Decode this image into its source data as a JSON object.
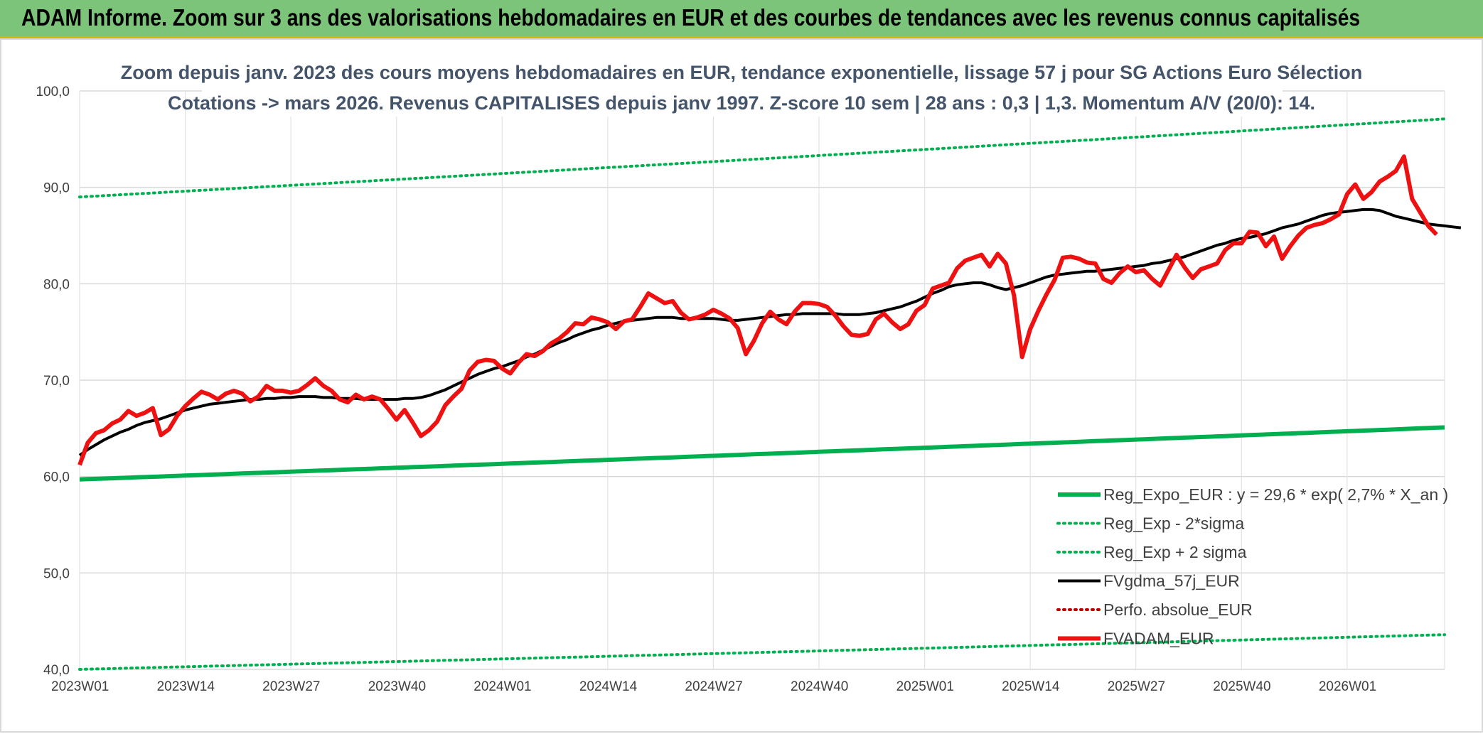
{
  "banner": {
    "title": "ADAM Informe. Zoom sur 3 ans des valorisations hebdomadaires en EUR et des courbes de tendances avec les revenus connus capitalisés"
  },
  "chart_data": {
    "type": "line",
    "title_line1": "Zoom depuis janv. 2023 des cours moyens hebdomadaires en EUR, tendance exponentielle, lissage 57 j pour SG Actions Euro Sélection",
    "title_line2": "Cotations -> mars 2026. Revenus CAPITALISES depuis janv 1997. Z-score 10 sem | 28 ans : 0,3 | 1,3. Momentum A/V (20/0): 14.",
    "ylim": [
      40,
      100
    ],
    "yticks": [
      "40,0",
      "50,0",
      "60,0",
      "70,0",
      "80,0",
      "90,0",
      "100,0"
    ],
    "xtick_labels": [
      "2023W01",
      "2023W14",
      "2023W27",
      "2023W40",
      "2024W01",
      "2024W14",
      "2024W27",
      "2024W40",
      "2025W01",
      "2025W14",
      "2025W27",
      "2025W40",
      "2026W01"
    ],
    "x_categories_count": 169,
    "grid": true,
    "legend_position": "bottom-right",
    "series": [
      {
        "name": "Reg_Expo_EUR : y = 29,6 * exp( 2,7% *  X_an )",
        "color": "#00b050",
        "style": "solid-thick",
        "values": [
          59.7,
          65.1
        ]
      },
      {
        "name": "Reg_Exp - 2*sigma",
        "color": "#00b050",
        "style": "dotted",
        "values": [
          40.0,
          43.6
        ]
      },
      {
        "name": "Reg_Exp + 2 sigma",
        "color": "#00b050",
        "style": "dotted",
        "values": [
          89.0,
          97.1
        ]
      },
      {
        "name": "FVgdma_57j_EUR",
        "color": "#000000",
        "style": "solid",
        "values": [
          62.2,
          62.8,
          63.3,
          63.8,
          64.2,
          64.6,
          64.9,
          65.3,
          65.6,
          65.8,
          66.0,
          66.3,
          66.6,
          66.9,
          67.1,
          67.3,
          67.5,
          67.6,
          67.7,
          67.8,
          67.9,
          68.0,
          68.0,
          68.1,
          68.1,
          68.2,
          68.2,
          68.3,
          68.3,
          68.3,
          68.2,
          68.2,
          68.1,
          68.1,
          68.1,
          68.0,
          68.0,
          68.0,
          68.0,
          68.0,
          68.1,
          68.1,
          68.2,
          68.4,
          68.7,
          69.0,
          69.4,
          69.8,
          70.2,
          70.6,
          70.9,
          71.2,
          71.4,
          71.7,
          72.0,
          72.4,
          72.7,
          73.1,
          73.5,
          73.9,
          74.2,
          74.6,
          74.9,
          75.2,
          75.4,
          75.7,
          75.9,
          76.1,
          76.2,
          76.3,
          76.4,
          76.5,
          76.5,
          76.5,
          76.4,
          76.4,
          76.4,
          76.4,
          76.4,
          76.3,
          76.2,
          76.2,
          76.3,
          76.4,
          76.5,
          76.6,
          76.7,
          76.8,
          76.8,
          76.9,
          76.9,
          76.9,
          76.9,
          76.9,
          76.8,
          76.8,
          76.8,
          76.9,
          77.0,
          77.2,
          77.4,
          77.6,
          77.9,
          78.2,
          78.6,
          79.0,
          79.3,
          79.7,
          79.9,
          80.0,
          80.1,
          80.1,
          79.9,
          79.6,
          79.4,
          79.6,
          79.8,
          80.1,
          80.4,
          80.7,
          80.9,
          81.0,
          81.1,
          81.2,
          81.3,
          81.3,
          81.4,
          81.5,
          81.6,
          81.7,
          81.8,
          81.9,
          82.1,
          82.2,
          82.4,
          82.6,
          82.8,
          83.1,
          83.4,
          83.7,
          84.0,
          84.2,
          84.5,
          84.7,
          84.8,
          85.0,
          85.2,
          85.5,
          85.8,
          86.0,
          86.2,
          86.5,
          86.8,
          87.1,
          87.3,
          87.4,
          87.5,
          87.6,
          87.7,
          87.7,
          87.6,
          87.3,
          87.0,
          86.8,
          86.6,
          86.4,
          86.2,
          86.1,
          86.0,
          85.9,
          85.8
        ]
      },
      {
        "name": "Perfo. absolue_EUR",
        "color": "#c00000",
        "style": "dotted",
        "values": []
      },
      {
        "name": "FVADAM_EUR",
        "color": "#ee1111",
        "style": "solid-thick",
        "values": [
          61.2,
          63.5,
          64.5,
          64.8,
          65.5,
          65.9,
          66.8,
          66.3,
          66.6,
          67.1,
          64.3,
          64.9,
          66.3,
          67.3,
          68.1,
          68.8,
          68.5,
          68.0,
          68.6,
          68.9,
          68.6,
          67.8,
          68.3,
          69.4,
          68.9,
          68.9,
          68.7,
          68.9,
          69.5,
          70.2,
          69.4,
          68.9,
          68.0,
          67.7,
          68.5,
          68.0,
          68.3,
          68.0,
          67.0,
          65.9,
          66.9,
          65.6,
          64.2,
          64.8,
          65.7,
          67.4,
          68.3,
          69.1,
          71.0,
          71.9,
          72.1,
          72.0,
          71.2,
          70.7,
          71.8,
          72.7,
          72.5,
          73.0,
          73.8,
          74.3,
          75.0,
          75.9,
          75.8,
          76.5,
          76.3,
          76.0,
          75.3,
          76.1,
          76.3,
          77.6,
          79.0,
          78.5,
          78.0,
          78.2,
          77.0,
          76.3,
          76.5,
          76.8,
          77.3,
          76.9,
          76.4,
          75.4,
          72.7,
          74.1,
          75.9,
          77.1,
          76.3,
          75.8,
          77.1,
          78.0,
          78.0,
          77.9,
          77.6,
          76.7,
          75.6,
          74.7,
          74.6,
          74.8,
          76.3,
          76.9,
          76.0,
          75.3,
          75.8,
          77.2,
          77.8,
          79.5,
          79.8,
          80.1,
          81.6,
          82.4,
          82.7,
          83.0,
          81.8,
          83.1,
          82.1,
          78.8,
          72.4,
          75.3,
          77.2,
          78.9,
          80.4,
          82.7,
          82.8,
          82.6,
          82.2,
          82.1,
          80.5,
          80.1,
          81.1,
          81.8,
          81.2,
          81.4,
          80.5,
          79.8,
          81.4,
          83.0,
          81.7,
          80.6,
          81.5,
          81.8,
          82.1,
          83.5,
          84.2,
          84.2,
          85.4,
          85.3,
          83.9,
          84.9,
          82.6,
          83.9,
          85.0,
          85.8,
          86.1,
          86.3,
          86.7,
          87.2,
          89.3,
          90.3,
          88.8,
          89.5,
          90.6,
          91.1,
          91.7,
          93.2,
          88.8,
          87.4,
          86.0,
          85.1
        ]
      }
    ]
  }
}
